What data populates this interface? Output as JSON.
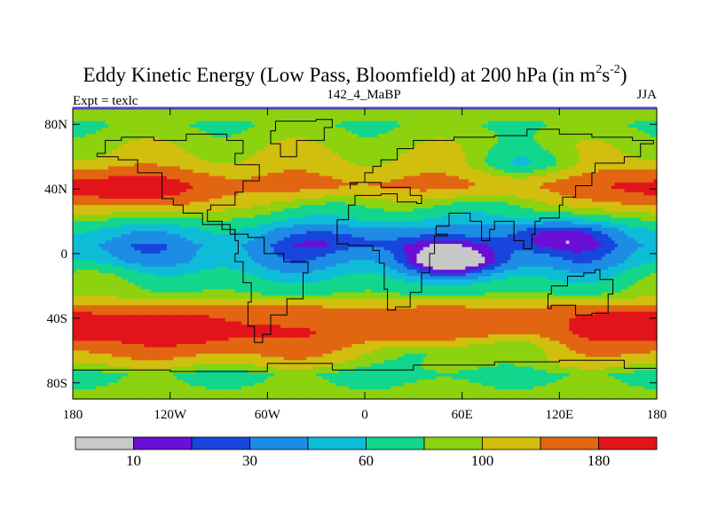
{
  "chart_data": {
    "type": "heatmap",
    "title_main": "Eddy Kinetic Energy (Low Pass, Bloomfield) at 200 hPa (in m",
    "title_sup1": "2",
    "title_mid": "s",
    "title_sup2": "-2",
    "title_end": ")",
    "left_label": "Expt = texlc",
    "center_label": "142_4_MaBP",
    "right_label": "JJA",
    "x_ticks": [
      {
        "value": -180,
        "label": "180"
      },
      {
        "value": -120,
        "label": "120W"
      },
      {
        "value": -60,
        "label": "60W"
      },
      {
        "value": 0,
        "label": "0"
      },
      {
        "value": 60,
        "label": "60E"
      },
      {
        "value": 120,
        "label": "120E"
      },
      {
        "value": 180,
        "label": "180"
      }
    ],
    "y_ticks": [
      {
        "value": 80,
        "label": "80N"
      },
      {
        "value": 40,
        "label": "40N"
      },
      {
        "value": 0,
        "label": "0"
      },
      {
        "value": -40,
        "label": "40S"
      },
      {
        "value": -80,
        "label": "80S"
      }
    ],
    "xlim": [
      -180,
      180
    ],
    "ylim": [
      -90,
      90
    ],
    "colorbar": {
      "colors": [
        "#c8c8c8",
        "#6a0fd6",
        "#1846dc",
        "#1c8ce4",
        "#0fbcd8",
        "#12d68c",
        "#8cd20e",
        "#d2be0e",
        "#e26612",
        "#e2141a"
      ],
      "labels": [
        {
          "after_box": 1,
          "text": "10"
        },
        {
          "after_box": 3,
          "text": "30"
        },
        {
          "after_box": 5,
          "text": "60"
        },
        {
          "after_box": 7,
          "text": "100"
        },
        {
          "after_box": 9,
          "text": "180"
        }
      ]
    },
    "field_levels": [
      {
        "lat": 90,
        "value": 100
      },
      {
        "lat": 80,
        "value": 80
      },
      {
        "lat": 70,
        "value": 92
      },
      {
        "lat": 55,
        "value": 110
      },
      {
        "lat": 42,
        "value": 145
      },
      {
        "lat": 28,
        "value": 100
      },
      {
        "lat": 15,
        "value": 55
      },
      {
        "lat": 5,
        "value": 38
      },
      {
        "lat": -5,
        "value": 42
      },
      {
        "lat": -15,
        "value": 60
      },
      {
        "lat": -25,
        "value": 80
      },
      {
        "lat": -38,
        "value": 160
      },
      {
        "lat": -50,
        "value": 175
      },
      {
        "lat": -65,
        "value": 120
      },
      {
        "lat": -75,
        "value": 75
      },
      {
        "lat": -85,
        "value": 85
      },
      {
        "lat": -90,
        "value": 95
      }
    ],
    "anomalies": [
      {
        "lon": -135,
        "lat": 40,
        "value": 70
      },
      {
        "lon": 175,
        "lat": 40,
        "value": 50
      },
      {
        "lon": -110,
        "lat": -48,
        "value": 55
      },
      {
        "lon": 170,
        "lat": -45,
        "value": 70
      },
      {
        "lon": 110,
        "lat": 12,
        "value": -35
      },
      {
        "lon": 58,
        "lat": -5,
        "value": -40
      },
      {
        "lon": -5,
        "lat": 10,
        "value": -25
      },
      {
        "lon": 40,
        "lat": -60,
        "value": -60
      },
      {
        "lon": 100,
        "lat": -55,
        "value": -45
      },
      {
        "lon": 100,
        "lat": 55,
        "value": -40
      },
      {
        "lon": -20,
        "lat": 30,
        "value": -30
      },
      {
        "lon": 70,
        "lat": 30,
        "value": -35
      },
      {
        "lon": -160,
        "lat": -15,
        "value": 25
      }
    ]
  }
}
